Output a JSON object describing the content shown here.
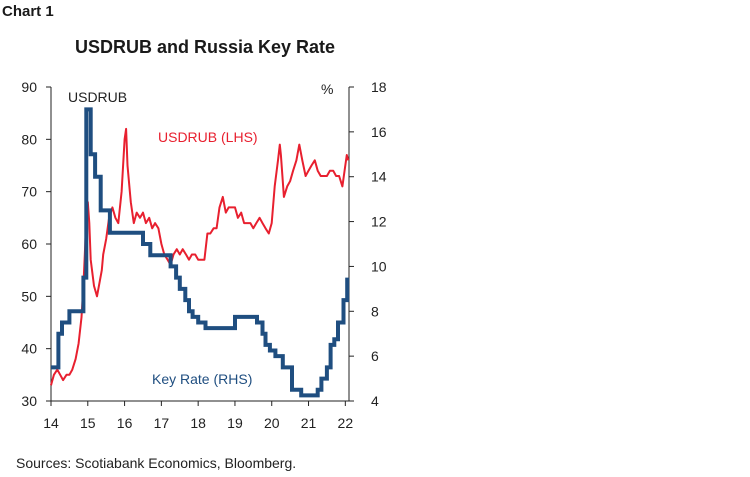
{
  "header": {
    "label": "Chart 1",
    "title": "USDRUB and Russia Key Rate"
  },
  "footer": {
    "source": "Sources: Scotiabank Economics, Bloomberg."
  },
  "colors": {
    "usdrub": "#e8202f",
    "key_rate": "#1f4e80",
    "axis": "#222222"
  },
  "chart_data": {
    "type": "line",
    "title": "USDRUB and Russia Key Rate",
    "x_tick_labels": [
      "14",
      "15",
      "16",
      "17",
      "18",
      "19",
      "20",
      "21",
      "22"
    ],
    "x_range": [
      2014.0,
      2022.1
    ],
    "left_axis": {
      "label": "USDRUB",
      "range": [
        30,
        90
      ],
      "ticks": [
        30,
        40,
        50,
        60,
        70,
        80,
        90
      ]
    },
    "right_axis": {
      "label": "%",
      "range": [
        4,
        18
      ],
      "ticks": [
        4,
        6,
        8,
        10,
        12,
        14,
        16,
        18
      ]
    },
    "grid": false,
    "annotations": {
      "usdrub": "USDRUB (LHS)",
      "key_rate": "Key Rate (RHS)"
    },
    "series": [
      {
        "name": "USDRUB (LHS)",
        "axis": "left",
        "x": [
          2014.0,
          2014.08,
          2014.17,
          2014.25,
          2014.33,
          2014.42,
          2014.5,
          2014.58,
          2014.67,
          2014.75,
          2014.83,
          2014.88,
          2014.92,
          2014.96,
          2015.0,
          2015.04,
          2015.08,
          2015.17,
          2015.25,
          2015.33,
          2015.38,
          2015.42,
          2015.5,
          2015.58,
          2015.67,
          2015.75,
          2015.83,
          2015.92,
          2016.0,
          2016.04,
          2016.08,
          2016.17,
          2016.25,
          2016.33,
          2016.42,
          2016.5,
          2016.58,
          2016.67,
          2016.75,
          2016.83,
          2016.92,
          2017.0,
          2017.08,
          2017.17,
          2017.25,
          2017.33,
          2017.42,
          2017.5,
          2017.58,
          2017.67,
          2017.75,
          2017.83,
          2017.92,
          2018.0,
          2018.08,
          2018.17,
          2018.25,
          2018.33,
          2018.42,
          2018.5,
          2018.58,
          2018.67,
          2018.75,
          2018.83,
          2018.92,
          2019.0,
          2019.08,
          2019.17,
          2019.25,
          2019.33,
          2019.42,
          2019.5,
          2019.58,
          2019.67,
          2019.75,
          2019.83,
          2019.92,
          2020.0,
          2020.08,
          2020.17,
          2020.22,
          2020.25,
          2020.33,
          2020.42,
          2020.5,
          2020.58,
          2020.67,
          2020.75,
          2020.83,
          2020.92,
          2021.0,
          2021.08,
          2021.17,
          2021.25,
          2021.33,
          2021.42,
          2021.5,
          2021.58,
          2021.67,
          2021.75,
          2021.83,
          2021.92,
          2022.0,
          2022.04,
          2022.08
        ],
        "y": [
          33,
          35,
          36,
          35,
          34,
          35,
          35,
          36,
          38,
          41,
          46,
          52,
          58,
          65,
          68,
          64,
          57,
          52,
          50,
          53,
          55,
          58,
          61,
          65,
          67,
          65,
          64,
          70,
          80,
          82,
          75,
          68,
          64,
          66,
          65,
          66,
          64,
          65,
          63,
          64,
          63,
          60,
          58,
          57,
          56,
          58,
          59,
          58,
          59,
          58,
          57,
          58,
          58,
          57,
          57,
          57,
          62,
          62,
          63,
          63,
          67,
          69,
          66,
          67,
          67,
          67,
          65,
          66,
          64,
          64,
          64,
          63,
          64,
          65,
          64,
          63,
          62,
          64,
          71,
          76,
          79,
          77,
          69,
          71,
          72,
          74,
          76,
          79,
          76,
          73,
          74,
          75,
          76,
          74,
          73,
          73,
          73,
          74,
          74,
          73,
          73,
          71,
          75,
          77,
          76
        ]
      },
      {
        "name": "Key Rate (RHS)",
        "axis": "right",
        "x": [
          2014.0,
          2014.15,
          2014.2,
          2014.3,
          2014.5,
          2014.82,
          2014.88,
          2014.96,
          2015.08,
          2015.2,
          2015.35,
          2015.6,
          2016.5,
          2016.7,
          2017.25,
          2017.4,
          2017.5,
          2017.65,
          2017.75,
          2017.85,
          2018.0,
          2018.2,
          2019.0,
          2019.6,
          2019.75,
          2019.83,
          2019.95,
          2020.1,
          2020.3,
          2020.55,
          2020.8,
          2021.25,
          2021.35,
          2021.5,
          2021.6,
          2021.7,
          2021.8,
          2021.95,
          2022.05
        ],
        "y": [
          5.5,
          5.5,
          7.0,
          7.5,
          8.0,
          8.0,
          9.5,
          17.0,
          15.0,
          14.0,
          12.5,
          11.5,
          11.0,
          10.5,
          10.0,
          9.5,
          9.0,
          8.5,
          8.0,
          7.75,
          7.5,
          7.25,
          7.75,
          7.5,
          7.0,
          6.5,
          6.25,
          6.0,
          5.5,
          4.5,
          4.25,
          4.5,
          5.0,
          5.5,
          6.5,
          6.75,
          7.5,
          8.5,
          9.5
        ]
      }
    ]
  }
}
